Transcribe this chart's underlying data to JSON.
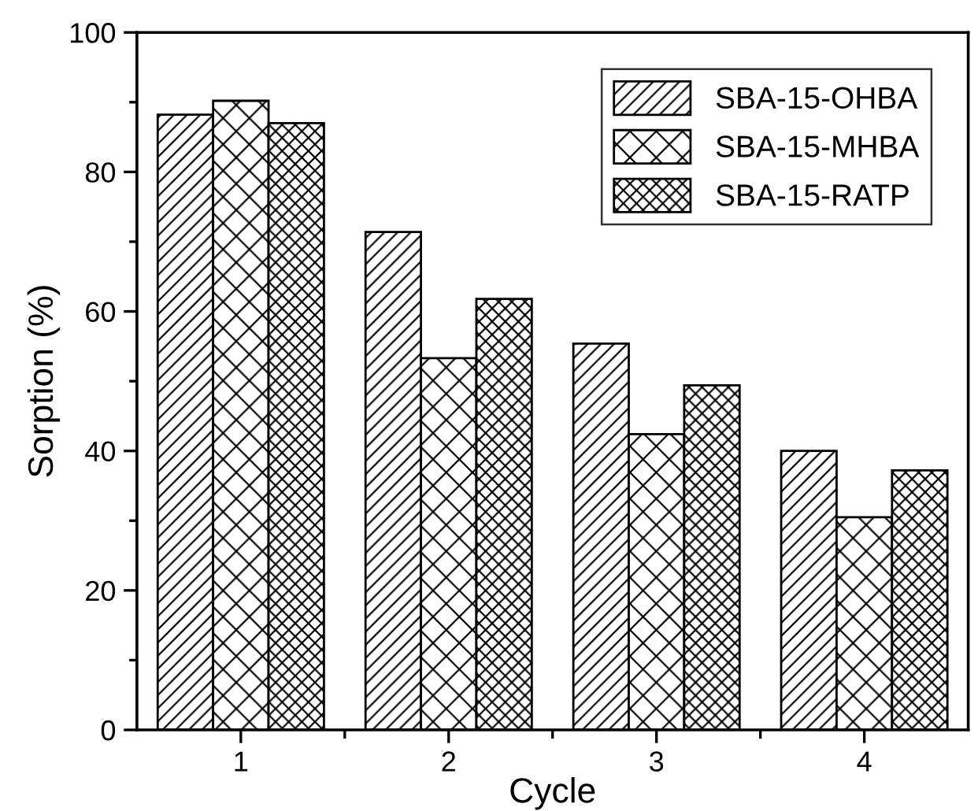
{
  "chart_data": {
    "type": "bar",
    "xlabel": "Cycle",
    "ylabel": "Sorption (%)",
    "categories": [
      "1",
      "2",
      "3",
      "4"
    ],
    "series": [
      {
        "name": "SBA-15-OHBA",
        "color": "#000000",
        "values": [
          88.2,
          71.4,
          55.4,
          40.0
        ]
      },
      {
        "name": "SBA-15-MHBA",
        "color": "#000000",
        "values": [
          90.2,
          53.3,
          42.4,
          30.5
        ]
      },
      {
        "name": "SBA-15-RATP",
        "color": "#000000",
        "values": [
          87.0,
          61.8,
          49.4,
          37.2
        ]
      }
    ],
    "ylim": [
      0,
      100
    ],
    "yticks": [
      0,
      20,
      40,
      60,
      80,
      100
    ],
    "grid": false,
    "legend": "top right"
  }
}
